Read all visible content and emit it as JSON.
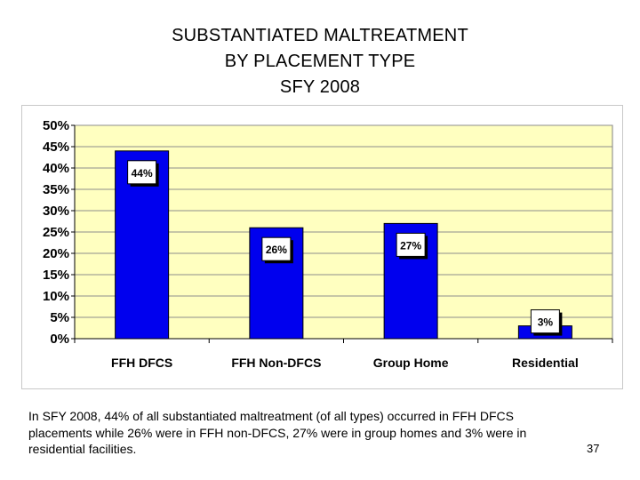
{
  "title": {
    "line1": "SUBSTANTIATED MALTREATMENT",
    "line2": "BY PLACEMENT TYPE",
    "line3": "SFY 2008"
  },
  "chart_data": {
    "type": "bar",
    "title": "SUBSTANTIATED MALTREATMENT BY PLACEMENT TYPE SFY 2008",
    "xlabel": "",
    "ylabel": "",
    "ylim": [
      0,
      50
    ],
    "yticks": [
      0,
      5,
      10,
      15,
      20,
      25,
      30,
      35,
      40,
      45,
      50
    ],
    "ytick_labels": [
      "0%",
      "5%",
      "10%",
      "15%",
      "20%",
      "25%",
      "30%",
      "35%",
      "40%",
      "45%",
      "50%"
    ],
    "categories": [
      "FFH DFCS",
      "FFH Non-DFCS",
      "Group Home",
      "Residential"
    ],
    "values": [
      44,
      26,
      27,
      3
    ],
    "data_labels": [
      "44%",
      "26%",
      "27%",
      "3%"
    ],
    "grid": true,
    "legend": "none",
    "colors": {
      "bar": "#0000ee",
      "plot_background": "#ffffc0",
      "gridline": "#8c8c8c"
    }
  },
  "caption": "In SFY 2008, 44% of all substantiated maltreatment (of all types) occurred in FFH DFCS placements while 26% were in FFH non-DFCS, 27% were in group homes and 3% were in residential facilities.",
  "page_number": "37"
}
